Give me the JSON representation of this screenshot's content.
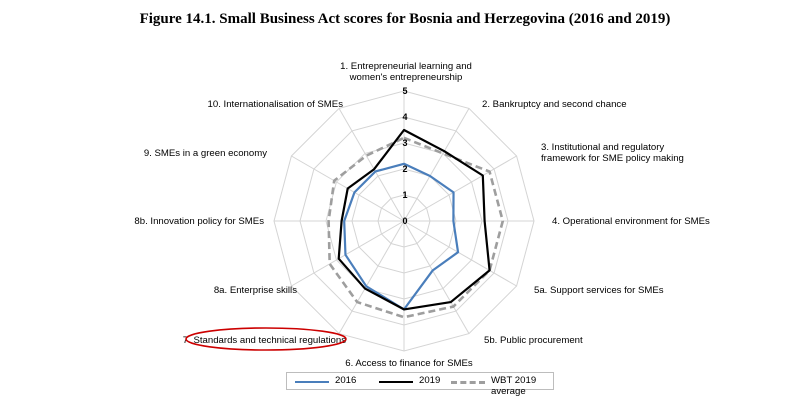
{
  "title": "Figure 14.1. Small Business Act scores for Bosnia and Herzegovina (2016 and 2019)",
  "chart_data": {
    "type": "radar",
    "title": "Figure 14.1. Small Business Act scores for Bosnia and Herzegovina (2016 and 2019)",
    "axes": [
      "1. Entrepreneurial learning and women's entrepreneurship",
      "2. Bankruptcy and second chance",
      "3. Institutional and regulatory framework for SME policy making",
      "4. Operational environment for SMEs",
      "5a. Support services for SMEs",
      "5b. Public procurement",
      "6. Access to finance for SMEs",
      "7. Standards and technical regulations",
      "8a. Enterprise skills",
      "8b. Innovation policy for SMEs",
      "9. SMEs in a green economy",
      "10. Internationalisation of SMEs"
    ],
    "ticks": [
      "0",
      "1",
      "2",
      "3",
      "4",
      "5"
    ],
    "range": [
      0,
      5
    ],
    "series": [
      {
        "name": "2016",
        "color": "#4a7ebb",
        "dash": "solid",
        "values": [
          2.2,
          2.0,
          2.2,
          1.9,
          2.4,
          2.2,
          3.4,
          2.9,
          2.6,
          2.3,
          2.2,
          2.2
        ]
      },
      {
        "name": "2019",
        "color": "#000000",
        "dash": "solid",
        "values": [
          3.5,
          3.1,
          3.5,
          3.1,
          3.8,
          3.6,
          3.4,
          3.0,
          2.9,
          2.4,
          2.5,
          2.3
        ]
      },
      {
        "name": "WBT 2019 average",
        "color": "#9e9e9e",
        "dash": "dashed",
        "values": [
          3.2,
          3.0,
          3.8,
          3.8,
          3.8,
          3.8,
          3.7,
          3.6,
          3.3,
          2.9,
          3.1,
          2.9
        ]
      }
    ],
    "highlighted_axis": "7. Standards and technical regulations",
    "highlight_color": "#cc0000",
    "legend": "bottom"
  },
  "axis_labels": [
    [
      "1. Entrepreneurial learning and",
      "women's entrepreneurship"
    ],
    [
      "2. Bankruptcy and second chance"
    ],
    [
      "3. Institutional and regulatory",
      "framework for SME policy making"
    ],
    [
      "4. Operational environment for SMEs"
    ],
    [
      "5a. Support services for SMEs"
    ],
    [
      "5b. Public procurement"
    ],
    [
      "6. Access to finance for SMEs"
    ],
    [
      "7. Standards and technical regulations"
    ],
    [
      "8a. Enterprise skills"
    ],
    [
      "8b. Innovation policy for SMEs"
    ],
    [
      "9. SMEs in a green economy"
    ],
    [
      "10. Internationalisation of SMEs"
    ]
  ]
}
